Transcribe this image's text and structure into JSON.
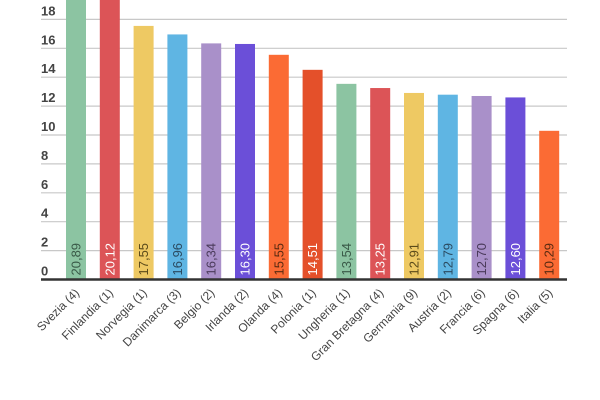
{
  "chart_data": {
    "type": "bar",
    "title": "",
    "xlabel": "",
    "ylabel": "",
    "categories": [
      "Svezia (4)",
      "Finlandia (1)",
      "Norvegia (1)",
      "Danimarca (3)",
      "Belgio (2)",
      "Irlanda (2)",
      "Olanda (4)",
      "Polonia (1)",
      "Ungheria (1)",
      "Gran Bretagna (4)",
      "Germania (9)",
      "Austria (2)",
      "Francia (6)",
      "Spagna (6)",
      "Italia (5)"
    ],
    "values": [
      20.89,
      20.12,
      17.55,
      16.96,
      16.34,
      16.3,
      15.55,
      14.51,
      13.54,
      13.25,
      12.91,
      12.79,
      12.7,
      12.6,
      10.29
    ],
    "value_labels": [
      "20,89",
      "20,12",
      "17,55",
      "16,96",
      "16,34",
      "16,30",
      "15,55",
      "14,51",
      "13,54",
      "13,25",
      "12,91",
      "12,79",
      "12,70",
      "12,60",
      "10,29"
    ],
    "colors": [
      "#8cc4a2",
      "#dc5457",
      "#eec963",
      "#5fb5e3",
      "#a990c9",
      "#6b4fd8",
      "#fb6b34",
      "#e4502a",
      "#8cc4a2",
      "#dc5457",
      "#eec963",
      "#5fb5e3",
      "#a990c9",
      "#6b4fd8",
      "#fb6b34"
    ],
    "label_colors": [
      "#3a5a48",
      "#ffffff",
      "#5a4a1a",
      "#2a4a60",
      "#4a3a5a",
      "#ffffff",
      "#5a2a10",
      "#ffffff",
      "#3a5a48",
      "#ffffff",
      "#5a4a1a",
      "#2a4a60",
      "#4a3a5a",
      "#ffffff",
      "#5a2a10"
    ],
    "yticks": [
      0,
      2,
      4,
      6,
      8,
      10,
      12,
      14,
      16,
      18
    ],
    "ylim": [
      0,
      19.3
    ],
    "grid": true,
    "legend": null
  }
}
